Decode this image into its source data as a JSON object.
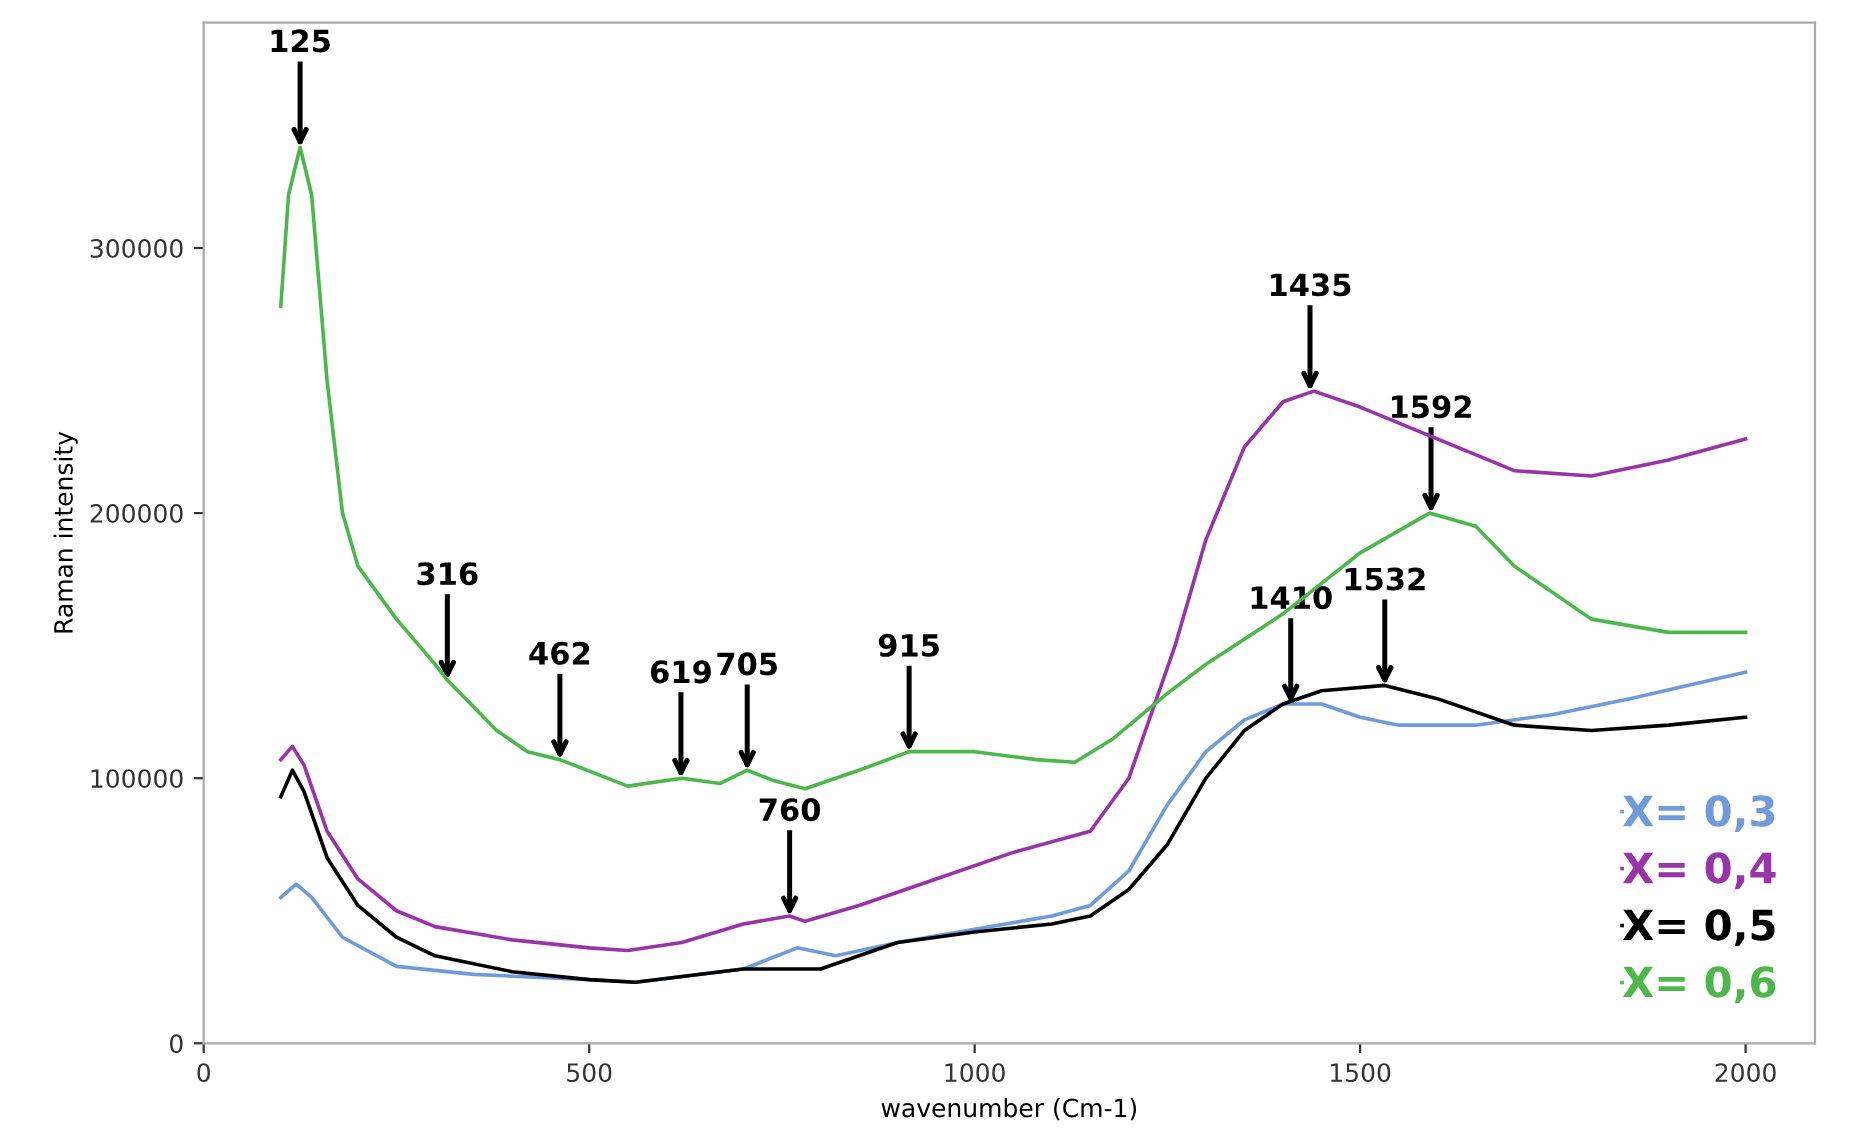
{
  "chart_data": {
    "type": "line",
    "xlabel": "wavenumber (Cm-1)",
    "ylabel": "Raman intensity",
    "xlim": [
      0,
      2090
    ],
    "ylim": [
      0,
      385000
    ],
    "xticks": [
      0,
      500,
      1000,
      1500,
      2000
    ],
    "yticks": [
      0,
      100000,
      200000,
      300000
    ],
    "grid": false,
    "legend": "bottom right",
    "marker": "none",
    "line_style": "solid",
    "series": [
      {
        "name": "X= 0,3",
        "color": "#6f9bdc",
        "x": [
          100,
          120,
          140,
          180,
          250,
          350,
          500,
          560,
          700,
          770,
          820,
          900,
          1000,
          1100,
          1150,
          1200,
          1250,
          1300,
          1350,
          1400,
          1450,
          1500,
          1550,
          1650,
          1750,
          1850,
          2000
        ],
        "values": [
          55000,
          60000,
          55000,
          40000,
          29000,
          26000,
          24000,
          23000,
          28000,
          36000,
          33000,
          38000,
          43000,
          48000,
          52000,
          65000,
          90000,
          110000,
          122000,
          128000,
          128000,
          123000,
          120000,
          120000,
          124000,
          130000,
          140000
        ]
      },
      {
        "name": "X= 0,4",
        "color": "#9933aa",
        "x": [
          100,
          115,
          130,
          160,
          200,
          250,
          300,
          400,
          500,
          550,
          620,
          700,
          760,
          780,
          850,
          950,
          1050,
          1150,
          1200,
          1260,
          1300,
          1350,
          1400,
          1440,
          1500,
          1600,
          1700,
          1800,
          1900,
          2000
        ],
        "values": [
          107000,
          112000,
          105000,
          80000,
          62000,
          50000,
          44000,
          39000,
          36000,
          35000,
          38000,
          45000,
          48000,
          46000,
          52000,
          62000,
          72000,
          80000,
          100000,
          150000,
          190000,
          225000,
          242000,
          246000,
          240000,
          228000,
          216000,
          214000,
          220000,
          228000
        ]
      },
      {
        "name": "X= 0,5",
        "color": "#000000",
        "x": [
          100,
          115,
          130,
          160,
          200,
          250,
          300,
          400,
          500,
          560,
          700,
          800,
          900,
          1000,
          1100,
          1150,
          1200,
          1250,
          1300,
          1350,
          1400,
          1450,
          1532,
          1600,
          1700,
          1800,
          1900,
          2000
        ],
        "values": [
          93000,
          103000,
          95000,
          70000,
          52000,
          40000,
          33000,
          27000,
          24000,
          23000,
          28000,
          28000,
          38000,
          42000,
          45000,
          48000,
          58000,
          75000,
          100000,
          118000,
          128000,
          133000,
          135000,
          130000,
          120000,
          118000,
          120000,
          123000
        ]
      },
      {
        "name": "X= 0,6",
        "color": "#4cb84c",
        "x": [
          100,
          110,
          125,
          140,
          160,
          180,
          200,
          250,
          300,
          316,
          380,
          420,
          462,
          550,
          620,
          670,
          705,
          740,
          780,
          850,
          915,
          1000,
          1080,
          1130,
          1180,
          1250,
          1300,
          1400,
          1500,
          1590,
          1650,
          1700,
          1800,
          1900,
          2000
        ],
        "values": [
          278000,
          320000,
          338000,
          320000,
          250000,
          200000,
          180000,
          160000,
          143000,
          137000,
          118000,
          110000,
          107000,
          97000,
          100000,
          98000,
          103000,
          99000,
          96000,
          103000,
          110000,
          110000,
          107000,
          106000,
          115000,
          132000,
          143000,
          162000,
          185000,
          200000,
          195000,
          180000,
          160000,
          155000,
          155000
        ]
      }
    ],
    "annotations": [
      {
        "text": "125",
        "x": 125,
        "y": 338000
      },
      {
        "text": "316",
        "x": 316,
        "y": 137000
      },
      {
        "text": "462",
        "x": 462,
        "y": 107000
      },
      {
        "text": "619",
        "x": 619,
        "y": 100000
      },
      {
        "text": "705",
        "x": 705,
        "y": 103000
      },
      {
        "text": "915",
        "x": 915,
        "y": 110000
      },
      {
        "text": "760",
        "x": 760,
        "y": 48000
      },
      {
        "text": "1435",
        "x": 1435,
        "y": 246000
      },
      {
        "text": "1592",
        "x": 1592,
        "y": 200000
      },
      {
        "text": "1410",
        "x": 1410,
        "y": 128000
      },
      {
        "text": "1532",
        "x": 1532,
        "y": 135000
      }
    ]
  }
}
